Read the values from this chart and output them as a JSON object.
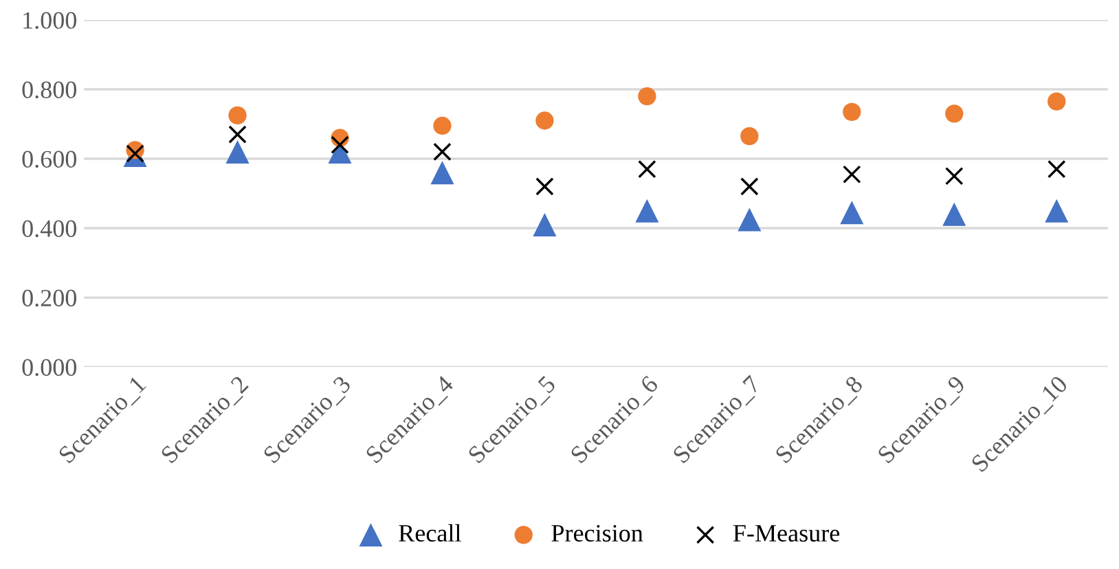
{
  "chart_data": {
    "type": "scatter",
    "categories": [
      "Scenario_1",
      "Scenario_2",
      "Scenario_3",
      "Scenario_4",
      "Scenario_5",
      "Scenario_6",
      "Scenario_7",
      "Scenario_8",
      "Scenario_9",
      "Scenario_10"
    ],
    "series": [
      {
        "name": "Recall",
        "color": "#4472c4",
        "marker": "triangle",
        "values": [
          0.61,
          0.62,
          0.62,
          0.56,
          0.41,
          0.45,
          0.425,
          0.445,
          0.44,
          0.45
        ]
      },
      {
        "name": "Precision",
        "color": "#ed7d31",
        "marker": "circle",
        "values": [
          0.625,
          0.725,
          0.66,
          0.695,
          0.71,
          0.78,
          0.665,
          0.735,
          0.73,
          0.765
        ]
      },
      {
        "name": "F-Measure",
        "color": "#000000",
        "marker": "cross",
        "values": [
          0.615,
          0.67,
          0.64,
          0.62,
          0.52,
          0.57,
          0.52,
          0.555,
          0.55,
          0.57
        ]
      }
    ],
    "ylim": [
      0,
      1
    ],
    "yticks": [
      {
        "value": 0,
        "label": "0.000"
      },
      {
        "value": 0.2,
        "label": "0.200"
      },
      {
        "value": 0.4,
        "label": "0.400"
      },
      {
        "value": 0.6,
        "label": "0.600"
      },
      {
        "value": 0.8,
        "label": "0.800"
      },
      {
        "value": 1,
        "label": "1.000"
      }
    ],
    "grid": "y",
    "legend": "bottom"
  }
}
